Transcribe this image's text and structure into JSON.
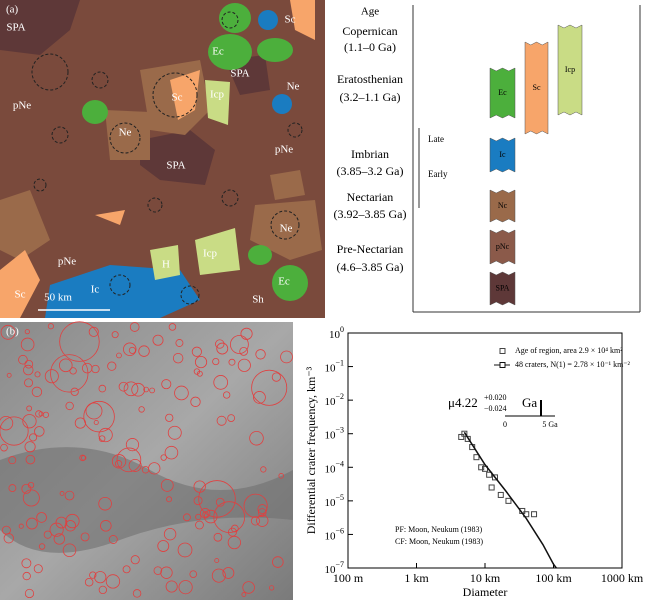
{
  "panel_a": {
    "label": "(a)",
    "map_labels": [
      "SPA",
      "Sc",
      "Ec",
      "SPA",
      "Sc",
      "Icp",
      "Ne",
      "pNe",
      "Ne",
      "pNe",
      "SPA",
      "Ne",
      "pNe",
      "H",
      "Icp",
      "Ec",
      "Sc",
      "Ic",
      "Sh",
      "50 km"
    ]
  },
  "stratigraphy": {
    "header": "Age",
    "periods": [
      {
        "name": "Copernican",
        "range": "(1.1–0 Ga)"
      },
      {
        "name": "Eratosthenian",
        "range": "(3.2–1.1 Ga)"
      },
      {
        "name": "Imbrian",
        "range": "(3.85–3.2 Ga)"
      },
      {
        "name": "Nectarian",
        "range": "(3.92–3.85 Ga)"
      },
      {
        "name": "Pre-Nectarian",
        "range": "(4.6–3.85 Ga)"
      }
    ],
    "subdivisions": [
      "Late",
      "Early"
    ],
    "units": [
      {
        "label": "Ec",
        "color": "#4caf3c"
      },
      {
        "label": "Sc",
        "color": "#f7a56a"
      },
      {
        "label": "Icp",
        "color": "#c9dc85"
      },
      {
        "label": "Ic",
        "color": "#1a7cc1"
      },
      {
        "label": "Nc",
        "color": "#9a6a4a"
      },
      {
        "label": "pNc",
        "color": "#8b5a4a"
      },
      {
        "label": "SPA",
        "color": "#5e3838"
      }
    ]
  },
  "panel_b": {
    "label": "(b)"
  },
  "chart_data": {
    "type": "scatter",
    "x_label": "Diameter",
    "y_label": "Differential crater frequency, km⁻³",
    "log_x": true,
    "log_y": true,
    "xlim": [
      0.1,
      1000
    ],
    "xticks": [
      {
        "value": 0.1,
        "label": "100 m"
      },
      {
        "value": 1,
        "label": "1 km"
      },
      {
        "value": 10,
        "label": "10 km"
      },
      {
        "value": 100,
        "label": "100 km"
      },
      {
        "value": 1000,
        "label": "1000 km"
      }
    ],
    "ylim": [
      1e-07,
      1
    ],
    "yticks": [
      {
        "value": 1,
        "label": "10",
        "exponent": "0"
      },
      {
        "value": 0.1,
        "label": "10",
        "exponent": "−1"
      },
      {
        "value": 0.01,
        "label": "10",
        "exponent": "−2"
      },
      {
        "value": 0.001,
        "label": "10",
        "exponent": "−3"
      },
      {
        "value": 0.0001,
        "label": "10",
        "exponent": "−4"
      },
      {
        "value": 1e-05,
        "label": "10",
        "exponent": "−5"
      },
      {
        "value": 1e-06,
        "label": "10",
        "exponent": "−6"
      },
      {
        "value": 1e-07,
        "label": "10",
        "exponent": "−7"
      }
    ],
    "series": [
      {
        "name": "Age of region, area 2.9 × 10⁴ km²",
        "type": "scatter",
        "color": "#444444",
        "x": [
          4.5,
          5,
          5.6,
          6.5,
          7.5,
          8.8,
          10,
          11.5,
          12.5,
          14,
          17,
          22,
          35,
          40,
          52
        ],
        "values": [
          0.0008,
          0.001,
          0.0007,
          0.0004,
          0.0002,
          0.0001,
          9e-05,
          6e-05,
          2.5e-05,
          5e-05,
          1.5e-05,
          1e-05,
          5e-06,
          4e-06,
          4e-06
        ]
      },
      {
        "name": "48 craters, N(1) = 2.78 × 10⁻¹ km⁻²",
        "type": "line",
        "color": "#111111",
        "x": [
          5,
          10,
          20,
          40,
          70,
          100,
          110
        ],
        "values": [
          0.0011,
          0.00012,
          2e-05,
          3e-06,
          5e-07,
          1.3e-07,
          1e-07
        ]
      }
    ],
    "annotations": {
      "age": "μ4.22",
      "plus": "+0.020",
      "minus": "−0.024",
      "unit": "Ga",
      "inset_start": "0",
      "inset_end": "5 Ga"
    },
    "footnotes": [
      "PF: Moon, Neukum (1983)",
      "CF: Moon, Neukum (1983)"
    ]
  }
}
